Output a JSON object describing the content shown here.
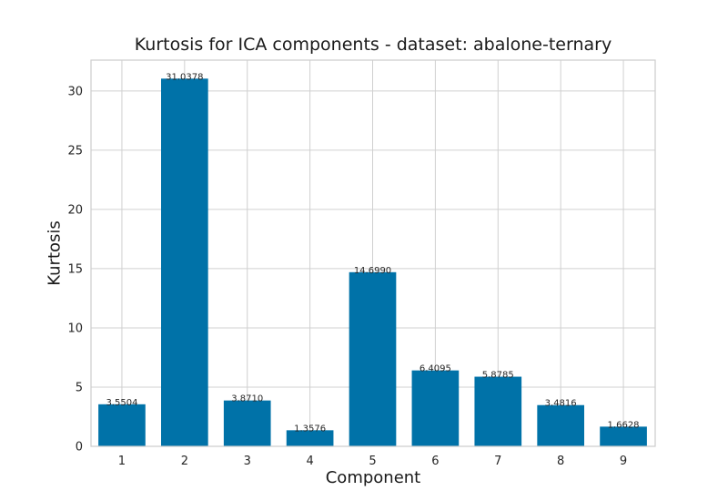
{
  "chart_data": {
    "type": "bar",
    "title": "Kurtosis for ICA components - dataset: abalone-ternary",
    "xlabel": "Component",
    "ylabel": "Kurtosis",
    "categories": [
      "1",
      "2",
      "3",
      "4",
      "5",
      "6",
      "7",
      "8",
      "9"
    ],
    "values": [
      3.5504,
      31.0378,
      3.871,
      1.3576,
      14.699,
      6.4095,
      5.8785,
      3.4816,
      1.6628
    ],
    "value_labels": [
      "3.5504",
      "31.0378",
      "3.8710",
      "1.3576",
      "14.6990",
      "6.4095",
      "5.8785",
      "3.4816",
      "1.6628"
    ],
    "yticks": [
      0,
      5,
      10,
      15,
      20,
      25,
      30
    ],
    "ylim": [
      0,
      32.6
    ],
    "grid": true,
    "bar_color": "#0072a8",
    "grid_color": "#d0d0d0",
    "axis_color": "#cccccc"
  }
}
